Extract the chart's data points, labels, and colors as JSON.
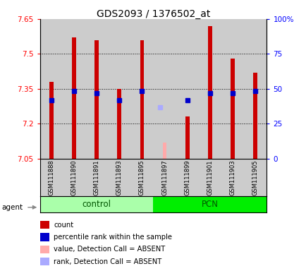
{
  "title": "GDS2093 / 1376502_at",
  "samples": [
    "GSM111888",
    "GSM111890",
    "GSM111891",
    "GSM111893",
    "GSM111895",
    "GSM111897",
    "GSM111899",
    "GSM111901",
    "GSM111903",
    "GSM111905"
  ],
  "bar_bottom": 7.05,
  "ylim_min": 7.05,
  "ylim_max": 7.65,
  "yticks": [
    7.05,
    7.2,
    7.35,
    7.5,
    7.65
  ],
  "values": [
    7.38,
    7.57,
    7.56,
    7.35,
    7.56,
    null,
    7.23,
    7.62,
    7.48,
    7.42
  ],
  "ranks": [
    7.3,
    7.34,
    7.33,
    7.3,
    7.34,
    null,
    7.3,
    7.33,
    7.33,
    7.34
  ],
  "absent_value": 7.12,
  "absent_rank": 7.27,
  "absent_index": 5,
  "bar_color": "#cc0000",
  "rank_color": "#0000cc",
  "absent_bar_color": "#ffaaaa",
  "absent_rank_color": "#aaaaff",
  "control_bg": "#aaffaa",
  "pcn_bg": "#00ee00",
  "sample_bg": "#cccccc",
  "right_labels": [
    "0",
    "25",
    "50",
    "75",
    "100%"
  ],
  "right_ticks": [
    7.05,
    7.2,
    7.35,
    7.5,
    7.65
  ],
  "control_label": "control",
  "pcn_label": "PCN",
  "agent_label": "agent",
  "legend_items": [
    {
      "color": "#cc0000",
      "label": "count"
    },
    {
      "color": "#0000cc",
      "label": "percentile rank within the sample"
    },
    {
      "color": "#ffaaaa",
      "label": "value, Detection Call = ABSENT"
    },
    {
      "color": "#aaaaff",
      "label": "rank, Detection Call = ABSENT"
    }
  ]
}
